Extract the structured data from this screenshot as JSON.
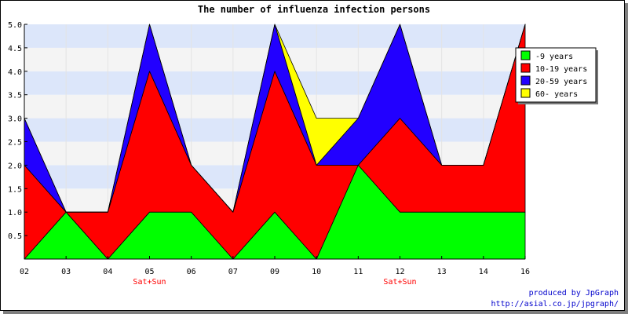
{
  "chart_data": {
    "type": "area",
    "stacked": true,
    "title": "The number of influenza infection persons",
    "categories": [
      "02",
      "03",
      "04",
      "05",
      "06",
      "07",
      "09",
      "10",
      "11",
      "12",
      "13",
      "14",
      "16"
    ],
    "category_sublabels": [
      "",
      "",
      "",
      "Sat+Sun",
      "",
      "",
      "",
      "",
      "",
      "Sat+Sun",
      "",
      "",
      ""
    ],
    "ylim": [
      0,
      5
    ],
    "yticks": [
      "0.5",
      "1.0",
      "1.5",
      "2.0",
      "2.5",
      "3.0",
      "3.5",
      "4.0",
      "4.5",
      "5.0"
    ],
    "grid": "horizontal bands",
    "band_colors": [
      "#f4f4f4",
      "#dce6fa"
    ],
    "legend_position": "top-right",
    "series": [
      {
        "name": "-9 years",
        "color": "#00ff00",
        "values": [
          0,
          1,
          0,
          1,
          1,
          0,
          1,
          0,
          2,
          1,
          1,
          1,
          1
        ]
      },
      {
        "name": "10-19 years",
        "color": "#ff0000",
        "values": [
          2,
          0,
          1,
          3,
          1,
          1,
          3,
          2,
          0,
          2,
          1,
          1,
          4
        ]
      },
      {
        "name": "20-59 years",
        "color": "#2200ff",
        "values": [
          1,
          0,
          0,
          1,
          0,
          0,
          1,
          0,
          1,
          2,
          0,
          0,
          0
        ]
      },
      {
        "name": "60- years",
        "color": "#ffff00",
        "values": [
          0,
          0,
          0,
          0,
          0,
          0,
          0,
          1,
          0,
          0,
          0,
          0,
          0
        ]
      }
    ]
  },
  "credit": {
    "line1": "produced by JpGraph",
    "line2": "http://asial.co.jp/jpgraph/"
  }
}
